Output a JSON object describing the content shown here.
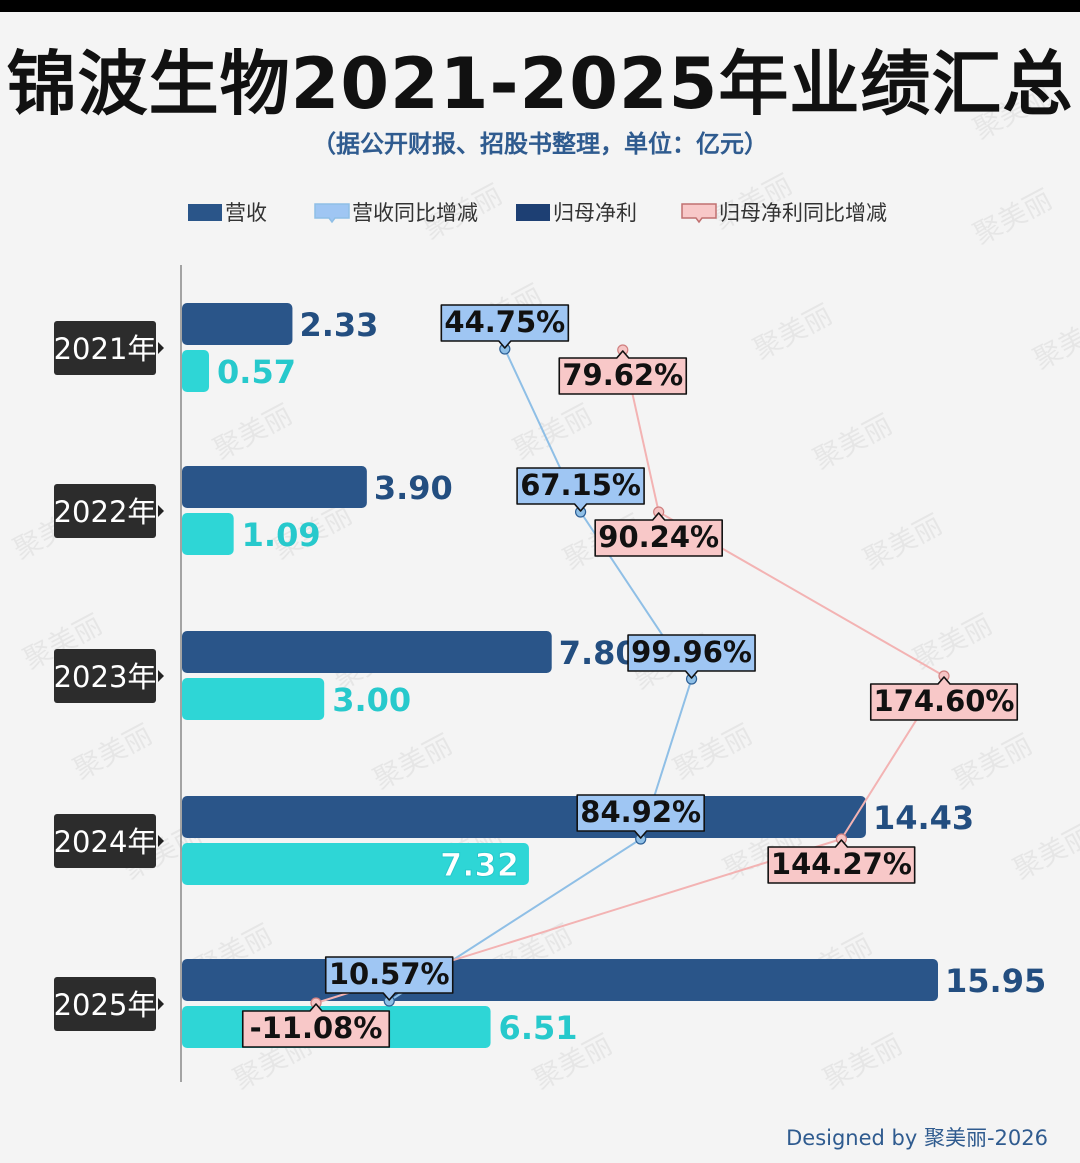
{
  "title": "锦波生物2021-2025年业绩汇总",
  "subtitle": "（据公开财报、招股书整理，单位：亿元）",
  "footer": "Designed by 聚美丽-2026",
  "watermark": "聚美丽",
  "colors": {
    "revenue": "#2a5589",
    "revenue_text": "#234e80",
    "net_profit": "#2ed6d6",
    "net_profit_text": "#27c9cc",
    "revenue_yoy_fill": "#9fc6f3",
    "revenue_yoy_line": "#8fbfe6",
    "profit_yoy_fill": "#f8c8c8",
    "profit_yoy_line": "#f3b3b3",
    "year_label_bg": "#2c2c2c",
    "axis": "#888888"
  },
  "chart_data": {
    "type": "bar",
    "orientation": "horizontal",
    "title": "锦波生物2021-2025年业绩汇总",
    "subtitle": "（据公开财报、招股书整理，单位：亿元）",
    "categories": [
      "2021年",
      "2022年",
      "2023年",
      "2024年",
      "2025年"
    ],
    "legend_position": "top",
    "legend": [
      "营收",
      "营收同比增减",
      "归母净利",
      "归母净利同比增减"
    ],
    "series": [
      {
        "name": "营收",
        "kind": "bar",
        "values": [
          2.33,
          3.9,
          7.8,
          14.43,
          15.95
        ],
        "labels": [
          "2.33",
          "3.90",
          "7.80",
          "14.43",
          "15.95"
        ]
      },
      {
        "name": "归母净利",
        "kind": "bar",
        "values": [
          0.57,
          1.09,
          3.0,
          7.32,
          6.51
        ],
        "labels": [
          "0.57",
          "1.09",
          "3.00",
          "7.32",
          "6.51"
        ]
      },
      {
        "name": "营收同比增减",
        "kind": "line",
        "values": [
          44.75,
          67.15,
          99.96,
          84.92,
          10.57
        ],
        "labels": [
          "44.75%",
          "67.15%",
          "99.96%",
          "84.92%",
          "10.57%"
        ]
      },
      {
        "name": "归母净利同比增减",
        "kind": "line",
        "values": [
          79.62,
          90.24,
          174.6,
          144.27,
          -11.08
        ],
        "labels": [
          "79.62%",
          "90.24%",
          "174.60%",
          "144.27%",
          "-11.08%"
        ]
      }
    ],
    "bar_axis_range": [
      0,
      17.5
    ],
    "pct_axis_range": [
      -45,
      205
    ]
  }
}
